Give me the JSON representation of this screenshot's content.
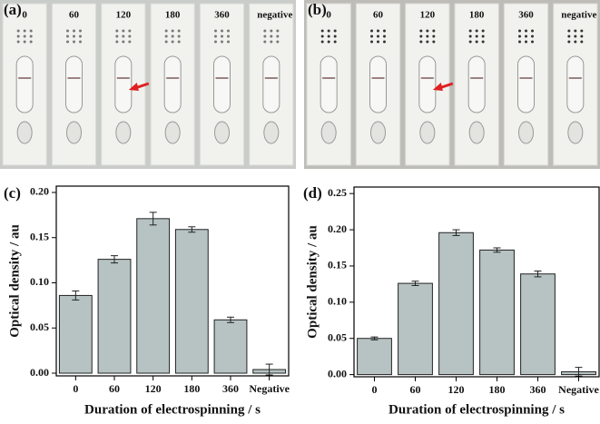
{
  "photos": [
    {
      "panel": "(a)",
      "labels": [
        "0",
        "60",
        "120",
        "180",
        "360",
        "negative"
      ]
    },
    {
      "panel": "(b)",
      "labels": [
        "0",
        "60",
        "120",
        "180",
        "360",
        "negative"
      ]
    }
  ],
  "chart_data": [
    {
      "type": "bar",
      "panel": "(c)",
      "xlabel": "Duration of electrospinning /  s",
      "ylabel": "Optical density / au",
      "categories": [
        "0",
        "60",
        "120",
        "180",
        "360",
        "Negative"
      ],
      "values": [
        0.086,
        0.126,
        0.171,
        0.159,
        0.059,
        0.004
      ],
      "errors": [
        0.005,
        0.004,
        0.007,
        0.003,
        0.003,
        0.006
      ],
      "color": "#b7c3c3",
      "ylim": [
        -0.003,
        0.207
      ],
      "yticks": [
        {
          "value": 0,
          "label": "0.00"
        },
        0.05,
        {
          "value": 0.1,
          "label": "0.10"
        },
        0.15,
        {
          "value": 0.2,
          "label": "0.20"
        }
      ]
    },
    {
      "type": "bar",
      "panel": "(d)",
      "xlabel": "Duration of electrospinning /  s",
      "ylabel": "Optical density / au",
      "categories": [
        "0",
        "60",
        "120",
        "180",
        "360",
        "Negative"
      ],
      "values": [
        0.05,
        0.126,
        0.196,
        0.172,
        0.139,
        0.004
      ],
      "errors": [
        0.002,
        0.003,
        0.004,
        0.003,
        0.004,
        0.006
      ],
      "color": "#b7c3c3",
      "ylim": [
        -0.003,
        0.259
      ],
      "yticks": [
        {
          "value": 0,
          "label": "0.00"
        },
        0.05,
        {
          "value": 0.1,
          "label": "0.10"
        },
        0.15,
        {
          "value": 0.2,
          "label": "0.20"
        },
        0.25
      ]
    }
  ]
}
